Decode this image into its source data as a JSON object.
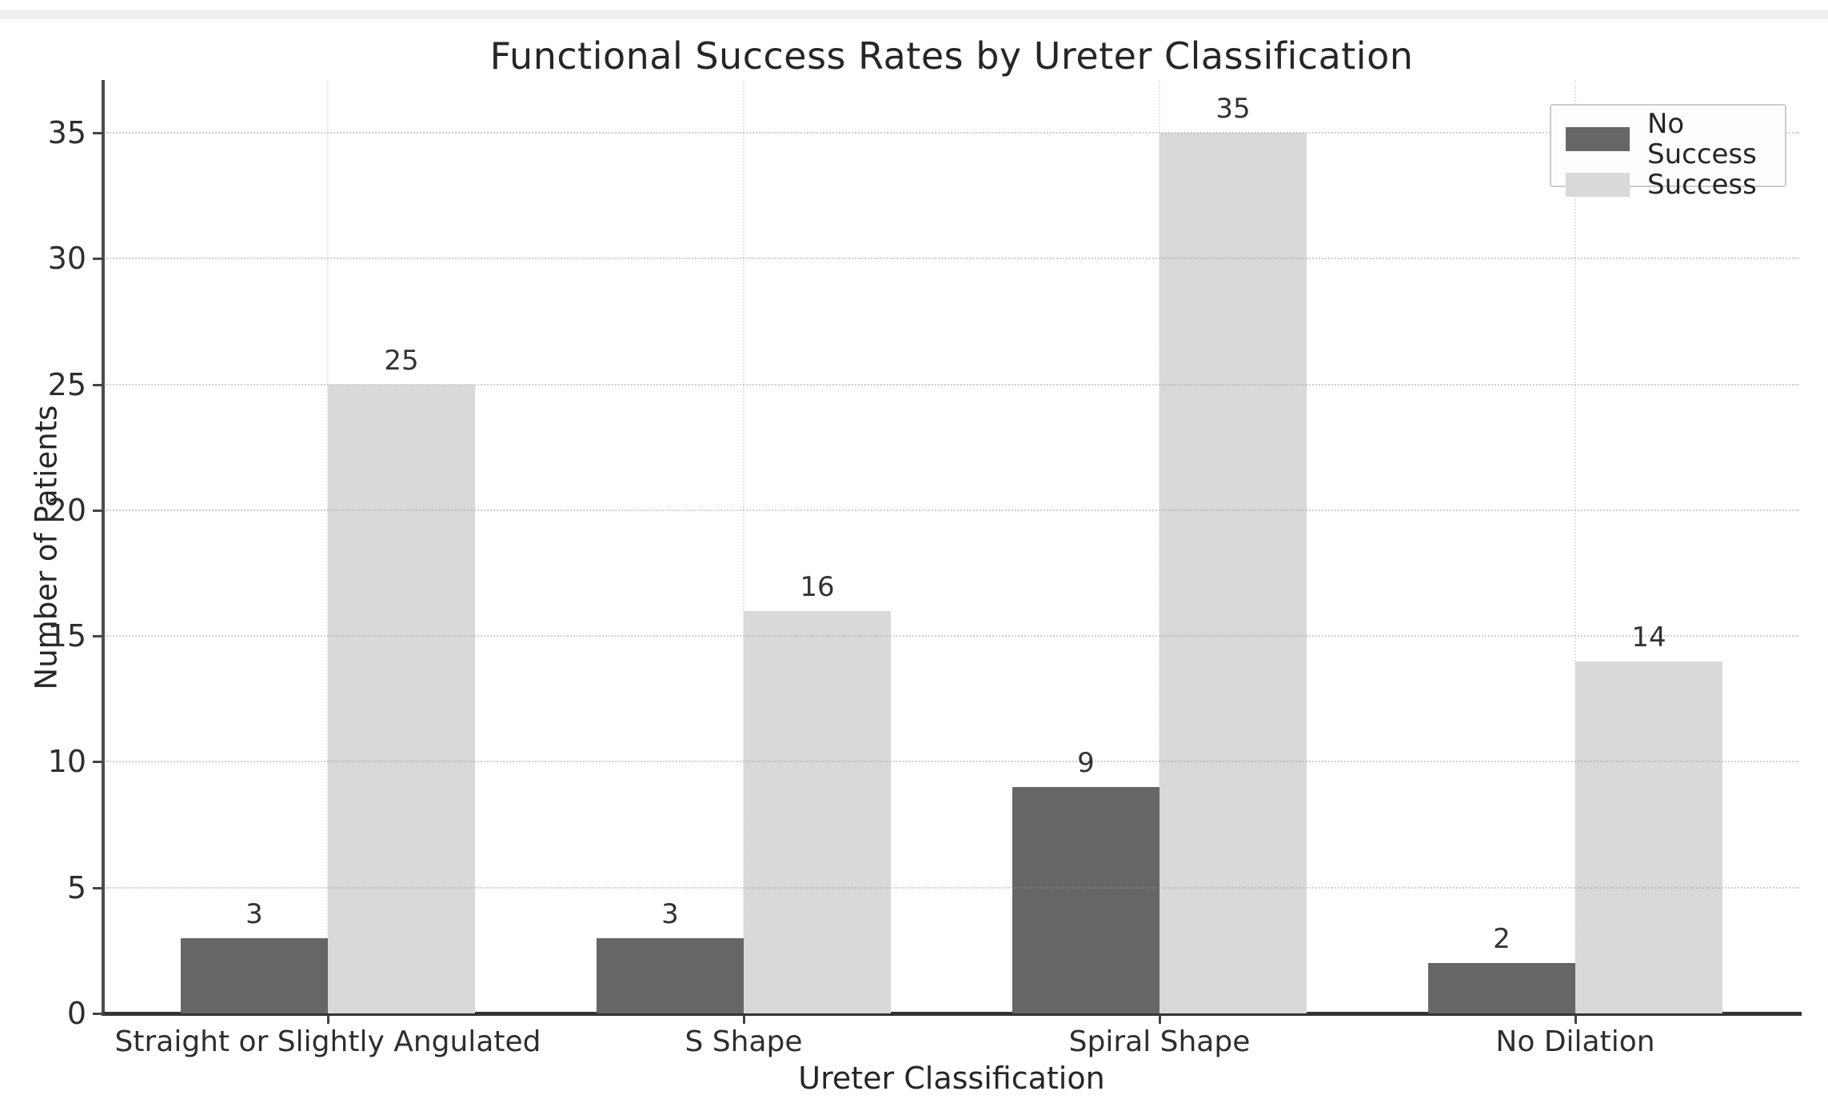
{
  "chart_data": {
    "type": "bar",
    "title": "Functional Success Rates by Ureter Classification",
    "xlabel": "Ureter Classification",
    "ylabel": "Number of Patients",
    "categories": [
      "Straight or Slightly Angulated",
      "S Shape",
      "Spiral Shape",
      "No Dilation"
    ],
    "series": [
      {
        "name": "No Success",
        "color": "#666667",
        "values": [
          3,
          3,
          9,
          2
        ]
      },
      {
        "name": "Success",
        "color": "#d9d9d9",
        "values": [
          25,
          16,
          35,
          14
        ]
      }
    ],
    "bar_value_labels": [
      [
        3,
        3,
        9,
        2
      ],
      [
        25,
        16,
        35,
        14
      ]
    ],
    "yticks": [
      0,
      5,
      10,
      15,
      20,
      25,
      30,
      35
    ],
    "ylim": [
      0,
      37.1
    ],
    "grid": "horizontal dotted at yticks, faint vertical dotted at category centers",
    "legend_position": "upper right"
  },
  "colors": {
    "no_success_bar": "#666667",
    "success_bar": "#d9d9d9",
    "axis_spine": "#333333",
    "grid_line": "#c6c6c6",
    "text": "#262626",
    "legend_border": "#cccccc"
  }
}
